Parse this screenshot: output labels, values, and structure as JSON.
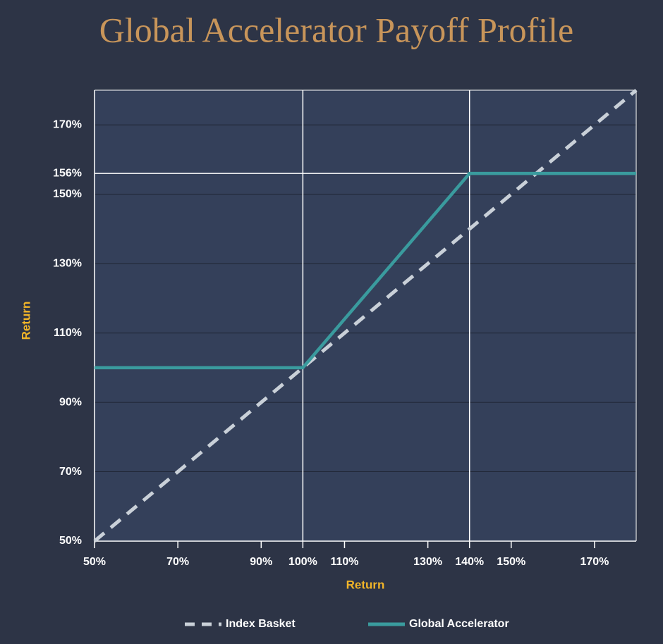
{
  "chart_data": {
    "type": "line",
    "title": "Global Accelerator Payoff Profile",
    "x_label": "Return",
    "y_label": "Return",
    "xlim": [
      50,
      180
    ],
    "ylim": [
      50,
      180
    ],
    "xticks": [
      {
        "value": 50,
        "label": "50%"
      },
      {
        "value": 70,
        "label": "70%"
      },
      {
        "value": 90,
        "label": "90%"
      },
      {
        "value": 100,
        "label": "100%"
      },
      {
        "value": 110,
        "label": "110%"
      },
      {
        "value": 130,
        "label": "130%"
      },
      {
        "value": 140,
        "label": "140%"
      },
      {
        "value": 150,
        "label": "150%"
      },
      {
        "value": 170,
        "label": "170%"
      }
    ],
    "yticks": [
      {
        "value": 50,
        "label": "50%"
      },
      {
        "value": 70,
        "label": "70%"
      },
      {
        "value": 90,
        "label": "90%"
      },
      {
        "value": 110,
        "label": "110%"
      },
      {
        "value": 130,
        "label": "130%"
      },
      {
        "value": 150,
        "label": "150%"
      },
      {
        "value": 156,
        "label": "156%"
      },
      {
        "value": 170,
        "label": "170%"
      }
    ],
    "x_reference_lines": [
      100,
      140
    ],
    "y_reference_lines": [
      156
    ],
    "grid": true,
    "legend": "bottom",
    "series": [
      {
        "name": "Index Basket",
        "color": "#c9d0d8",
        "dashed": true,
        "x": [
          50,
          180
        ],
        "values": [
          50,
          180
        ]
      },
      {
        "name": "Global Accelerator",
        "color": "#3a9b9e",
        "dashed": false,
        "x": [
          50,
          100,
          140,
          180
        ],
        "values": [
          100,
          100,
          156,
          156
        ]
      }
    ]
  }
}
